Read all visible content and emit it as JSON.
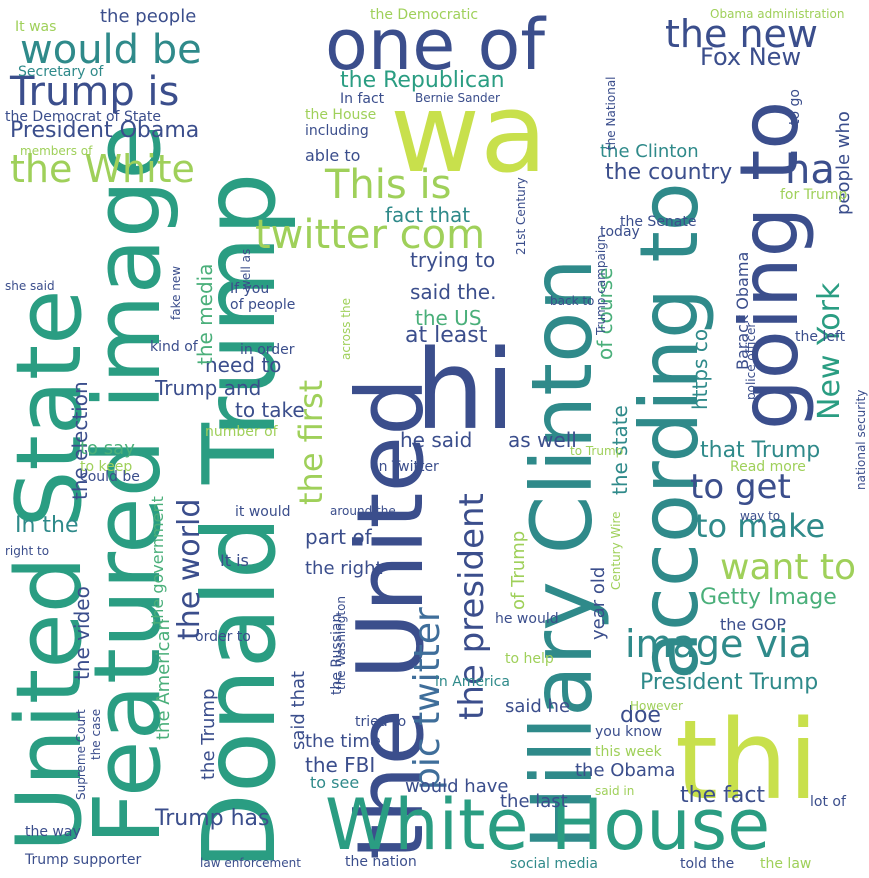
{
  "palette": {
    "navy": "#3b4e8c",
    "blue": "#3f6e9a",
    "teal": "#2f8a8a",
    "sea": "#2a9d82",
    "green": "#4aaf7a",
    "lime": "#9fd05a",
    "yellow": "#c8e04c"
  },
  "words": [
    {
      "text": "Donald Trump",
      "size": 100,
      "x": 0,
      "y": 0,
      "rot": 1,
      "color": "sea"
    },
    {
      "text": "Featured image",
      "size": 92,
      "x": 0,
      "y": 0,
      "rot": 1,
      "color": "sea"
    },
    {
      "text": "United State",
      "size": 90,
      "x": 0,
      "y": 0,
      "rot": 1,
      "color": "sea"
    },
    {
      "text": "the United",
      "size": 92,
      "x": 0,
      "y": 0,
      "rot": 1,
      "color": "navy"
    },
    {
      "text": "Hillary Clinton",
      "size": 84,
      "x": 0,
      "y": 0,
      "rot": 1,
      "color": "teal"
    },
    {
      "text": "according to",
      "size": 80,
      "x": 0,
      "y": 0,
      "rot": 1,
      "color": "teal"
    },
    {
      "text": "going to",
      "size": 80,
      "x": 0,
      "y": 0,
      "rot": 1,
      "color": "navy"
    },
    {
      "text": "wa",
      "size": 110,
      "x": 0,
      "y": 0,
      "rot": 0,
      "color": "yellow"
    },
    {
      "text": "thi",
      "size": 110,
      "x": 0,
      "y": 0,
      "rot": 0,
      "color": "yellow"
    },
    {
      "text": "hi",
      "size": 110,
      "x": 0,
      "y": 0,
      "rot": 0,
      "color": "navy"
    },
    {
      "text": "one of",
      "size": 70,
      "x": 0,
      "y": 0,
      "rot": 0,
      "color": "navy"
    },
    {
      "text": "White House",
      "size": 70,
      "x": 0,
      "y": 0,
      "rot": 0,
      "color": "sea"
    },
    {
      "text": "would be",
      "size": 40,
      "x": 0,
      "y": 0,
      "rot": 0,
      "color": "teal"
    },
    {
      "text": "Trump is",
      "size": 40,
      "x": 0,
      "y": 0,
      "rot": 0,
      "color": "navy"
    },
    {
      "text": "President Obama",
      "size": 22,
      "x": 0,
      "y": 0,
      "rot": 0,
      "color": "navy"
    },
    {
      "text": "the White",
      "size": 38,
      "x": 0,
      "y": 0,
      "rot": 0,
      "color": "lime"
    },
    {
      "text": "the new",
      "size": 38,
      "x": 0,
      "y": 0,
      "rot": 0,
      "color": "navy"
    },
    {
      "text": "Fox New",
      "size": 24,
      "x": 0,
      "y": 0,
      "rot": 0,
      "color": "navy"
    },
    {
      "text": "This is",
      "size": 40,
      "x": 0,
      "y": 0,
      "rot": 0,
      "color": "lime"
    },
    {
      "text": "twitter com",
      "size": 40,
      "x": 0,
      "y": 0,
      "rot": 0,
      "color": "lime"
    },
    {
      "text": "ha",
      "size": 40,
      "x": 0,
      "y": 0,
      "rot": 0,
      "color": "navy"
    },
    {
      "text": "image via",
      "size": 38,
      "x": 0,
      "y": 0,
      "rot": 0,
      "color": "teal"
    },
    {
      "text": "want to",
      "size": 36,
      "x": 0,
      "y": 0,
      "rot": 0,
      "color": "lime"
    },
    {
      "text": "to make",
      "size": 32,
      "x": 0,
      "y": 0,
      "rot": 0,
      "color": "teal"
    },
    {
      "text": "to get",
      "size": 34,
      "x": 0,
      "y": 0,
      "rot": 0,
      "color": "navy"
    },
    {
      "text": "pic twitter",
      "size": 36,
      "x": 0,
      "y": 0,
      "rot": 1,
      "color": "blue"
    },
    {
      "text": "the president",
      "size": 34,
      "x": 0,
      "y": 0,
      "rot": 1,
      "color": "navy"
    },
    {
      "text": "the first",
      "size": 32,
      "x": 0,
      "y": 0,
      "rot": 1,
      "color": "lime"
    },
    {
      "text": "New York",
      "size": 30,
      "x": 0,
      "y": 0,
      "rot": 1,
      "color": "sea"
    },
    {
      "text": "the world",
      "size": 30,
      "x": 0,
      "y": 0,
      "rot": 1,
      "color": "navy"
    },
    {
      "text": "the Republican",
      "size": 22,
      "x": 0,
      "y": 0,
      "rot": 0,
      "color": "sea"
    },
    {
      "text": "the country",
      "size": 22,
      "x": 0,
      "y": 0,
      "rot": 0,
      "color": "navy"
    },
    {
      "text": "fact that",
      "size": 20,
      "x": 0,
      "y": 0,
      "rot": 0,
      "color": "teal"
    },
    {
      "text": "trying to",
      "size": 20,
      "x": 0,
      "y": 0,
      "rot": 0,
      "color": "navy"
    },
    {
      "text": "said the.",
      "size": 20,
      "x": 0,
      "y": 0,
      "rot": 0,
      "color": "navy"
    },
    {
      "text": "the US",
      "size": 20,
      "x": 0,
      "y": 0,
      "rot": 0,
      "color": "green"
    },
    {
      "text": "at least",
      "size": 22,
      "x": 0,
      "y": 0,
      "rot": 0,
      "color": "navy"
    },
    {
      "text": "need to",
      "size": 20,
      "x": 0,
      "y": 0,
      "rot": 0,
      "color": "navy"
    },
    {
      "text": "Trump and",
      "size": 20,
      "x": 0,
      "y": 0,
      "rot": 0,
      "color": "navy"
    },
    {
      "text": "to take",
      "size": 20,
      "x": 0,
      "y": 0,
      "rot": 0,
      "color": "navy"
    },
    {
      "text": "he said",
      "size": 20,
      "x": 0,
      "y": 0,
      "rot": 0,
      "color": "navy"
    },
    {
      "text": "as well",
      "size": 20,
      "x": 0,
      "y": 0,
      "rot": 0,
      "color": "navy"
    },
    {
      "text": "that Trump",
      "size": 22,
      "x": 0,
      "y": 0,
      "rot": 0,
      "color": "teal"
    },
    {
      "text": "Getty Image",
      "size": 22,
      "x": 0,
      "y": 0,
      "rot": 0,
      "color": "green"
    },
    {
      "text": "President Trump",
      "size": 22,
      "x": 0,
      "y": 0,
      "rot": 0,
      "color": "teal"
    },
    {
      "text": "the fact",
      "size": 22,
      "x": 0,
      "y": 0,
      "rot": 0,
      "color": "navy"
    },
    {
      "text": "Trump has",
      "size": 22,
      "x": 0,
      "y": 0,
      "rot": 0,
      "color": "navy"
    },
    {
      "text": "the FBI",
      "size": 20,
      "x": 0,
      "y": 0,
      "rot": 0,
      "color": "navy"
    },
    {
      "text": "the time",
      "size": 18,
      "x": 0,
      "y": 0,
      "rot": 0,
      "color": "navy"
    },
    {
      "text": "would have",
      "size": 18,
      "x": 0,
      "y": 0,
      "rot": 0,
      "color": "navy"
    },
    {
      "text": "the last",
      "size": 18,
      "x": 0,
      "y": 0,
      "rot": 0,
      "color": "navy"
    },
    {
      "text": "the Obama",
      "size": 18,
      "x": 0,
      "y": 0,
      "rot": 0,
      "color": "navy"
    },
    {
      "text": "In the",
      "size": 22,
      "x": 0,
      "y": 0,
      "rot": 0,
      "color": "teal"
    },
    {
      "text": "part of",
      "size": 20,
      "x": 0,
      "y": 0,
      "rot": 0,
      "color": "navy"
    },
    {
      "text": "the right",
      "size": 18,
      "x": 0,
      "y": 0,
      "rot": 0,
      "color": "navy"
    },
    {
      "text": "It is",
      "size": 16,
      "x": 0,
      "y": 0,
      "rot": 0,
      "color": "navy"
    },
    {
      "text": "the people",
      "size": 18,
      "x": 0,
      "y": 0,
      "rot": 0,
      "color": "navy"
    },
    {
      "text": "the Democratic",
      "size": 14,
      "x": 0,
      "y": 0,
      "rot": 0,
      "color": "lime"
    },
    {
      "text": "the Clinton",
      "size": 18,
      "x": 0,
      "y": 0,
      "rot": 0,
      "color": "teal"
    },
    {
      "text": "doe",
      "size": 22,
      "x": 0,
      "y": 0,
      "rot": 0,
      "color": "navy"
    },
    {
      "text": "said he",
      "size": 18,
      "x": 0,
      "y": 0,
      "rot": 0,
      "color": "navy"
    },
    {
      "text": "the GOP",
      "size": 16,
      "x": 0,
      "y": 0,
      "rot": 0,
      "color": "navy"
    },
    {
      "text": "the media",
      "size": 20,
      "x": 0,
      "y": 0,
      "rot": 1,
      "color": "green"
    },
    {
      "text": "the election",
      "size": 20,
      "x": 0,
      "y": 0,
      "rot": 1,
      "color": "navy"
    },
    {
      "text": "the video",
      "size": 20,
      "x": 0,
      "y": 0,
      "rot": 1,
      "color": "navy"
    },
    {
      "text": "the American",
      "size": 18,
      "x": 0,
      "y": 0,
      "rot": 1,
      "color": "green"
    },
    {
      "text": "the Trump",
      "size": 18,
      "x": 0,
      "y": 0,
      "rot": 1,
      "color": "navy"
    },
    {
      "text": "the government",
      "size": 16,
      "x": 0,
      "y": 0,
      "rot": 1,
      "color": "green"
    },
    {
      "text": "said that",
      "size": 18,
      "x": 0,
      "y": 0,
      "rot": 1,
      "color": "navy"
    },
    {
      "text": "the state",
      "size": 20,
      "x": 0,
      "y": 0,
      "rot": 1,
      "color": "teal"
    },
    {
      "text": "of course",
      "size": 20,
      "x": 0,
      "y": 0,
      "rot": 1,
      "color": "green"
    },
    {
      "text": "year old",
      "size": 18,
      "x": 0,
      "y": 0,
      "rot": 1,
      "color": "navy"
    },
    {
      "text": "of Trump",
      "size": 18,
      "x": 0,
      "y": 0,
      "rot": 1,
      "color": "lime"
    },
    {
      "text": "https co",
      "size": 20,
      "x": 0,
      "y": 0,
      "rot": 1,
      "color": "teal"
    },
    {
      "text": "Barack Obama",
      "size": 16,
      "x": 0,
      "y": 0,
      "rot": 1,
      "color": "navy"
    },
    {
      "text": "people who",
      "size": 18,
      "x": 0,
      "y": 0,
      "rot": 1,
      "color": "navy"
    },
    {
      "text": "to go",
      "size": 14,
      "x": 0,
      "y": 0,
      "rot": 1,
      "color": "navy"
    },
    {
      "text": "It was",
      "size": 14,
      "x": 0,
      "y": 0,
      "rot": 0,
      "color": "lime"
    },
    {
      "text": "Secretary of",
      "size": 14,
      "x": 0,
      "y": 0,
      "rot": 0,
      "color": "teal"
    },
    {
      "text": "the Democrat of State",
      "size": 14,
      "x": 0,
      "y": 0,
      "rot": 0,
      "color": "navy"
    },
    {
      "text": "members of",
      "size": 12,
      "x": 0,
      "y": 0,
      "rot": 0,
      "color": "lime"
    },
    {
      "text": "Obama administration",
      "size": 12,
      "x": 0,
      "y": 0,
      "rot": 0,
      "color": "lime"
    },
    {
      "text": "Bernie Sander",
      "size": 12,
      "x": 0,
      "y": 0,
      "rot": 0,
      "color": "navy"
    },
    {
      "text": "In fact",
      "size": 14,
      "x": 0,
      "y": 0,
      "rot": 0,
      "color": "navy"
    },
    {
      "text": "the House",
      "size": 14,
      "x": 0,
      "y": 0,
      "rot": 0,
      "color": "lime"
    },
    {
      "text": "including",
      "size": 14,
      "x": 0,
      "y": 0,
      "rot": 0,
      "color": "navy"
    },
    {
      "text": "able to",
      "size": 16,
      "x": 0,
      "y": 0,
      "rot": 0,
      "color": "navy"
    },
    {
      "text": "21st Century",
      "size": 12,
      "x": 0,
      "y": 0,
      "rot": 1,
      "color": "navy"
    },
    {
      "text": "the National",
      "size": 12,
      "x": 0,
      "y": 0,
      "rot": 1,
      "color": "navy"
    },
    {
      "text": "the Senate",
      "size": 14,
      "x": 0,
      "y": 0,
      "rot": 0,
      "color": "navy"
    },
    {
      "text": "Trump campaign",
      "size": 12,
      "x": 0,
      "y": 0,
      "rot": 1,
      "color": "navy"
    },
    {
      "text": "for Trump",
      "size": 14,
      "x": 0,
      "y": 0,
      "rot": 0,
      "color": "lime"
    },
    {
      "text": "today",
      "size": 14,
      "x": 0,
      "y": 0,
      "rot": 0,
      "color": "navy"
    },
    {
      "text": "she said",
      "size": 12,
      "x": 0,
      "y": 0,
      "rot": 0,
      "color": "navy"
    },
    {
      "text": "well as",
      "size": 12,
      "x": 0,
      "y": 0,
      "rot": 1,
      "color": "navy"
    },
    {
      "text": "fake new",
      "size": 12,
      "x": 0,
      "y": 0,
      "rot": 1,
      "color": "navy"
    },
    {
      "text": "If you",
      "size": 14,
      "x": 0,
      "y": 0,
      "rot": 0,
      "color": "navy"
    },
    {
      "text": "of people",
      "size": 14,
      "x": 0,
      "y": 0,
      "rot": 0,
      "color": "navy"
    },
    {
      "text": "kind of",
      "size": 14,
      "x": 0,
      "y": 0,
      "rot": 0,
      "color": "navy"
    },
    {
      "text": "in order",
      "size": 14,
      "x": 0,
      "y": 0,
      "rot": 0,
      "color": "navy"
    },
    {
      "text": "across the",
      "size": 12,
      "x": 0,
      "y": 0,
      "rot": 1,
      "color": "lime"
    },
    {
      "text": "back to",
      "size": 12,
      "x": 0,
      "y": 0,
      "rot": 0,
      "color": "navy"
    },
    {
      "text": "police officer",
      "size": 12,
      "x": 0,
      "y": 0,
      "rot": 1,
      "color": "navy"
    },
    {
      "text": "the left",
      "size": 14,
      "x": 0,
      "y": 0,
      "rot": 0,
      "color": "navy"
    },
    {
      "text": "national security",
      "size": 12,
      "x": 0,
      "y": 0,
      "rot": 1,
      "color": "navy"
    },
    {
      "text": "Read more",
      "size": 14,
      "x": 0,
      "y": 0,
      "rot": 0,
      "color": "lime"
    },
    {
      "text": "to say",
      "size": 18,
      "x": 0,
      "y": 0,
      "rot": 0,
      "color": "green"
    },
    {
      "text": "number of",
      "size": 14,
      "x": 0,
      "y": 0,
      "rot": 0,
      "color": "lime"
    },
    {
      "text": "to keep",
      "size": 14,
      "x": 0,
      "y": 0,
      "rot": 0,
      "color": "lime"
    },
    {
      "text": "could be",
      "size": 14,
      "x": 0,
      "y": 0,
      "rot": 0,
      "color": "navy"
    },
    {
      "text": "on Twitter",
      "size": 14,
      "x": 0,
      "y": 0,
      "rot": 0,
      "color": "navy"
    },
    {
      "text": "to Trump",
      "size": 12,
      "x": 0,
      "y": 0,
      "rot": 0,
      "color": "lime"
    },
    {
      "text": "it would",
      "size": 14,
      "x": 0,
      "y": 0,
      "rot": 0,
      "color": "navy"
    },
    {
      "text": "around the",
      "size": 12,
      "x": 0,
      "y": 0,
      "rot": 0,
      "color": "navy"
    },
    {
      "text": "way to",
      "size": 12,
      "x": 0,
      "y": 0,
      "rot": 0,
      "color": "navy"
    },
    {
      "text": "right to",
      "size": 12,
      "x": 0,
      "y": 0,
      "rot": 0,
      "color": "navy"
    },
    {
      "text": "order to",
      "size": 14,
      "x": 0,
      "y": 0,
      "rot": 0,
      "color": "navy"
    },
    {
      "text": "the Washington",
      "size": 12,
      "x": 0,
      "y": 0,
      "rot": 1,
      "color": "navy"
    },
    {
      "text": "the Russian",
      "size": 14,
      "x": 0,
      "y": 0,
      "rot": 1,
      "color": "navy"
    },
    {
      "text": "tried to",
      "size": 14,
      "x": 0,
      "y": 0,
      "rot": 0,
      "color": "navy"
    },
    {
      "text": "he would",
      "size": 14,
      "x": 0,
      "y": 0,
      "rot": 0,
      "color": "navy"
    },
    {
      "text": "Century Wire",
      "size": 12,
      "x": 0,
      "y": 0,
      "rot": 1,
      "color": "lime"
    },
    {
      "text": "to help",
      "size": 14,
      "x": 0,
      "y": 0,
      "rot": 0,
      "color": "lime"
    },
    {
      "text": "in America",
      "size": 14,
      "x": 0,
      "y": 0,
      "rot": 0,
      "color": "teal"
    },
    {
      "text": "However",
      "size": 12,
      "x": 0,
      "y": 0,
      "rot": 0,
      "color": "lime"
    },
    {
      "text": "you know",
      "size": 14,
      "x": 0,
      "y": 0,
      "rot": 0,
      "color": "navy"
    },
    {
      "text": "this week",
      "size": 14,
      "x": 0,
      "y": 0,
      "rot": 0,
      "color": "lime"
    },
    {
      "text": "Supreme Court",
      "size": 12,
      "x": 0,
      "y": 0,
      "rot": 1,
      "color": "navy"
    },
    {
      "text": "the case",
      "size": 12,
      "x": 0,
      "y": 0,
      "rot": 1,
      "color": "navy"
    },
    {
      "text": "the way",
      "size": 14,
      "x": 0,
      "y": 0,
      "rot": 0,
      "color": "navy"
    },
    {
      "text": "Trump supporter",
      "size": 14,
      "x": 0,
      "y": 0,
      "rot": 0,
      "color": "navy"
    },
    {
      "text": "to see",
      "size": 16,
      "x": 0,
      "y": 0,
      "rot": 0,
      "color": "teal"
    },
    {
      "text": "said in",
      "size": 12,
      "x": 0,
      "y": 0,
      "rot": 0,
      "color": "lime"
    },
    {
      "text": "lot of",
      "size": 14,
      "x": 0,
      "y": 0,
      "rot": 0,
      "color": "navy"
    },
    {
      "text": "law enforcement",
      "size": 12,
      "x": 0,
      "y": 0,
      "rot": 0,
      "color": "navy"
    },
    {
      "text": "the nation",
      "size": 14,
      "x": 0,
      "y": 0,
      "rot": 0,
      "color": "navy"
    },
    {
      "text": "social media",
      "size": 14,
      "x": 0,
      "y": 0,
      "rot": 0,
      "color": "teal"
    },
    {
      "text": "told the",
      "size": 14,
      "x": 0,
      "y": 0,
      "rot": 0,
      "color": "navy"
    },
    {
      "text": "the law",
      "size": 14,
      "x": 0,
      "y": 0,
      "rot": 0,
      "color": "lime"
    }
  ]
}
